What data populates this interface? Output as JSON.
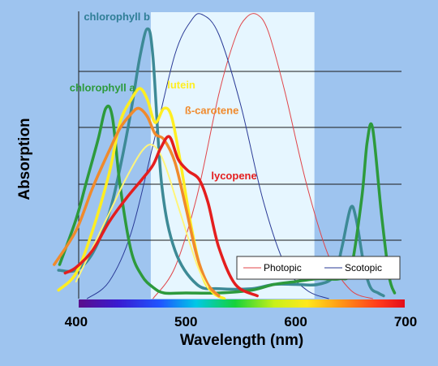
{
  "chart_data": {
    "type": "line",
    "title": "",
    "xlabel": "Wavelength (nm)",
    "ylabel": "Absorption",
    "xlim": [
      375,
      700
    ],
    "ylim": [
      0,
      1.0
    ],
    "x_ticks": [
      "400",
      "500",
      "600",
      "700"
    ],
    "grid": true,
    "visible_band_nm": [
      468,
      617
    ],
    "legend": {
      "placement": "bottom-right",
      "entries": [
        {
          "name": "Photopic",
          "color": "#e0454a"
        },
        {
          "name": "Scotopic",
          "color": "#2a3a96"
        }
      ]
    },
    "series": [
      {
        "name": "Photopic",
        "color": "#e0454a",
        "width": 1,
        "labeled": false,
        "x": [
          470,
          490,
          510,
          530,
          545,
          555,
          565,
          575,
          590,
          610,
          630,
          650,
          670
        ],
        "y": [
          0.0,
          0.11,
          0.36,
          0.72,
          0.92,
          0.99,
          1.0,
          0.94,
          0.73,
          0.4,
          0.15,
          0.03,
          0.0
        ]
      },
      {
        "name": "Scotopic",
        "color": "#2a3a96",
        "width": 1,
        "labeled": false,
        "x": [
          410,
          430,
          450,
          470,
          490,
          505,
          515,
          530,
          550,
          570,
          590,
          610,
          630
        ],
        "y": [
          0.0,
          0.06,
          0.23,
          0.54,
          0.86,
          0.98,
          1.0,
          0.93,
          0.68,
          0.35,
          0.12,
          0.03,
          0.0
        ]
      },
      {
        "name": "chlorophyll b",
        "color": "#3d8a96",
        "width": 3.5,
        "x": [
          384,
          400,
          415,
          430,
          440,
          450,
          458,
          465,
          470,
          478,
          490,
          510,
          530,
          560,
          580,
          600,
          620,
          635,
          642,
          650,
          655,
          662,
          668,
          675,
          680
        ],
        "y": [
          0.1,
          0.1,
          0.16,
          0.3,
          0.46,
          0.66,
          0.85,
          0.95,
          0.85,
          0.4,
          0.17,
          0.05,
          0.035,
          0.035,
          0.05,
          0.05,
          0.05,
          0.08,
          0.18,
          0.32,
          0.28,
          0.12,
          0.04,
          0.02,
          0.01
        ]
      },
      {
        "name": "chlorophyll a",
        "color": "#2d9a3c",
        "width": 3.5,
        "x": [
          385,
          400,
          410,
          420,
          427,
          433,
          440,
          450,
          460,
          470,
          480,
          500,
          530,
          560,
          580,
          600,
          620,
          640,
          650,
          660,
          665,
          670,
          678,
          685,
          690
        ],
        "y": [
          0.12,
          0.28,
          0.42,
          0.56,
          0.67,
          0.64,
          0.4,
          0.17,
          0.08,
          0.04,
          0.02,
          0.02,
          0.02,
          0.03,
          0.05,
          0.06,
          0.07,
          0.07,
          0.1,
          0.35,
          0.55,
          0.6,
          0.3,
          0.08,
          0.02
        ]
      },
      {
        "name": "lutein",
        "color": "#ffee22",
        "width": 3.5,
        "x": [
          384,
          400,
          415,
          430,
          440,
          450,
          458,
          465,
          472,
          480,
          487,
          495,
          505,
          515,
          525,
          535
        ],
        "y": [
          0.03,
          0.09,
          0.24,
          0.44,
          0.62,
          0.7,
          0.74,
          0.7,
          0.62,
          0.67,
          0.64,
          0.48,
          0.25,
          0.08,
          0.02,
          0.0
        ]
      },
      {
        "name": "ß-carotene",
        "color": "#f08a2c",
        "width": 3.5,
        "x": [
          380,
          400,
          415,
          430,
          440,
          450,
          457,
          465,
          472,
          480,
          490,
          500,
          510,
          520,
          530
        ],
        "y": [
          0.12,
          0.24,
          0.39,
          0.52,
          0.6,
          0.65,
          0.67,
          0.64,
          0.58,
          0.56,
          0.48,
          0.32,
          0.15,
          0.05,
          0.01
        ]
      },
      {
        "name": "",
        "color": "#fff57a",
        "width": 2,
        "x": [
          400,
          415,
          430,
          445,
          460,
          470,
          480,
          495,
          510,
          520
        ],
        "y": [
          0.06,
          0.18,
          0.3,
          0.42,
          0.52,
          0.54,
          0.48,
          0.3,
          0.12,
          0.04
        ]
      },
      {
        "name": "lycopene",
        "color": "#e41e1e",
        "width": 3.5,
        "x": [
          390,
          400,
          415,
          430,
          445,
          460,
          470,
          477,
          485,
          493,
          502,
          512,
          520,
          530,
          545,
          565
        ],
        "y": [
          0.09,
          0.11,
          0.17,
          0.27,
          0.35,
          0.42,
          0.47,
          0.53,
          0.57,
          0.49,
          0.45,
          0.42,
          0.34,
          0.18,
          0.05,
          0.01
        ]
      }
    ],
    "labels": [
      {
        "text": "chlorophyll b",
        "color": "#2f7e96",
        "at_nm": 407,
        "at_y": 0.98
      },
      {
        "text": "chlorophyll a",
        "color": "#2d9a3c",
        "at_nm": 394,
        "at_y": 0.73
      },
      {
        "text": "lutein",
        "color": "#ffee22",
        "at_nm": 483,
        "at_y": 0.74
      },
      {
        "text": "ß-carotene",
        "color": "#f08a2c",
        "at_nm": 499,
        "at_y": 0.65
      },
      {
        "text": "lycopene",
        "color": "#e41e1e",
        "at_nm": 523,
        "at_y": 0.42
      }
    ]
  }
}
